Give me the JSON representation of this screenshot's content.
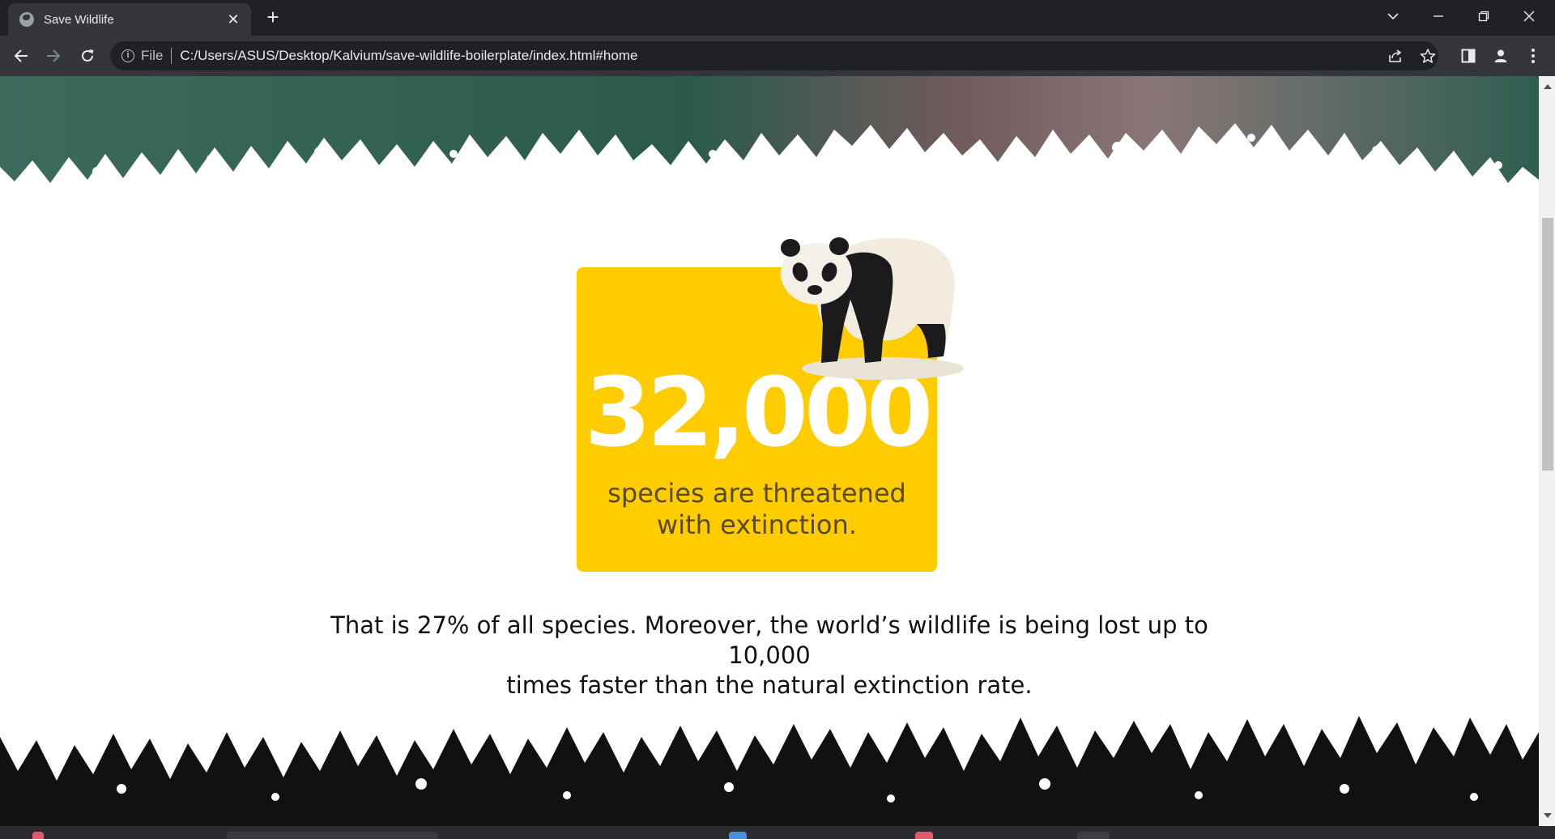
{
  "browser": {
    "tab": {
      "title": "Save Wildlife",
      "favicon": "globe-icon"
    },
    "address": {
      "scheme_label": "File",
      "url": "C:/Users/ASUS/Desktop/Kalvium/save-wildlife-boilerplate/index.html#home"
    },
    "theme_colors": {
      "tabstrip": "#202124",
      "toolbar": "#35363a",
      "omnibox": "#202124"
    }
  },
  "page": {
    "stat": {
      "number": "32,000",
      "caption_line1": "species are threatened",
      "caption_line2": "with extinction.",
      "card_color": "#ffcc00",
      "image": "panda-image"
    },
    "body_text_line1": "That is 27% of all species. Moreover, the world’s wildlife is being lost up to 10,000",
    "body_text_line2": "times faster than the natural extinction rate."
  },
  "scrollbar": {
    "position_fraction": 0.27
  }
}
